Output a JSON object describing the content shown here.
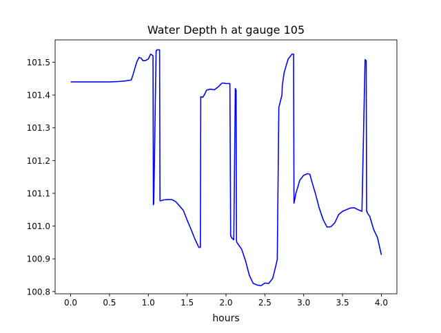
{
  "chart_data": {
    "type": "line",
    "title": "Water Depth h at gauge 105",
    "xlabel": "hours",
    "ylabel": "",
    "xlim": [
      -0.2,
      4.2
    ],
    "ylim": [
      100.7933,
      101.5683
    ],
    "xticks": [
      0.0,
      0.5,
      1.0,
      1.5,
      2.0,
      2.5,
      3.0,
      3.5,
      4.0
    ],
    "xtick_labels": [
      "0.0",
      "0.5",
      "1.0",
      "1.5",
      "2.0",
      "2.5",
      "3.0",
      "3.5",
      "4.0"
    ],
    "yticks": [
      100.8,
      100.9,
      101.0,
      101.1,
      101.2,
      101.3,
      101.4,
      101.5
    ],
    "ytick_labels": [
      "100.8",
      "100.9",
      "101.0",
      "101.1",
      "101.2",
      "101.3",
      "101.4",
      "101.5"
    ],
    "grid": false,
    "colors": {
      "line": "#0000ff",
      "axes": "#000000",
      "background": "#ffffff"
    },
    "series": [
      {
        "x": [
          0.0,
          0.5,
          0.6,
          0.7,
          0.78,
          0.8,
          0.85,
          0.88,
          0.91,
          0.93,
          0.96,
          1.0,
          1.03,
          1.06,
          1.065,
          1.07,
          1.1,
          1.105,
          1.11,
          1.145,
          1.15,
          1.155,
          1.2,
          1.25,
          1.3,
          1.35,
          1.4,
          1.45,
          1.5,
          1.55,
          1.6,
          1.65,
          1.67,
          1.675,
          1.7,
          1.72,
          1.75,
          1.8,
          1.85,
          1.9,
          1.95,
          2.0,
          2.05,
          2.06,
          2.065,
          2.07,
          2.1,
          2.12,
          2.13,
          2.135,
          2.14,
          2.2,
          2.25,
          2.3,
          2.35,
          2.4,
          2.45,
          2.5,
          2.55,
          2.6,
          2.62,
          2.64,
          2.66,
          2.68,
          2.72,
          2.725,
          2.75,
          2.8,
          2.85,
          2.87,
          2.875,
          2.88,
          2.9,
          2.95,
          3.0,
          3.05,
          3.08,
          3.1,
          3.15,
          3.2,
          3.25,
          3.3,
          3.35,
          3.4,
          3.45,
          3.5,
          3.55,
          3.6,
          3.65,
          3.7,
          3.75,
          3.79,
          3.805,
          3.81,
          3.815,
          3.82,
          3.85,
          3.9,
          3.95,
          4.0
        ],
        "y": [
          101.44,
          101.44,
          101.441,
          101.443,
          101.446,
          101.46,
          101.5,
          101.515,
          101.512,
          101.505,
          101.505,
          101.51,
          101.525,
          101.52,
          101.065,
          101.07,
          101.535,
          101.535,
          101.538,
          101.538,
          101.077,
          101.077,
          101.08,
          101.081,
          101.081,
          101.075,
          101.062,
          101.048,
          101.018,
          100.99,
          100.96,
          100.935,
          100.935,
          101.395,
          101.393,
          101.4,
          101.415,
          101.418,
          101.416,
          101.425,
          101.437,
          101.435,
          101.435,
          100.97,
          100.97,
          100.965,
          100.958,
          101.42,
          101.415,
          100.955,
          100.95,
          100.93,
          100.895,
          100.85,
          100.825,
          100.82,
          100.818,
          100.826,
          100.825,
          100.84,
          100.858,
          100.878,
          100.898,
          101.362,
          101.4,
          101.43,
          101.47,
          101.51,
          101.525,
          101.525,
          101.07,
          101.075,
          101.1,
          101.14,
          101.155,
          101.16,
          101.158,
          101.14,
          101.1,
          101.055,
          101.02,
          100.997,
          100.998,
          101.01,
          101.035,
          101.045,
          101.05,
          101.055,
          101.056,
          101.05,
          101.045,
          101.508,
          101.505,
          101.045,
          101.045,
          101.04,
          101.03,
          100.99,
          100.965,
          100.912
        ]
      }
    ]
  }
}
